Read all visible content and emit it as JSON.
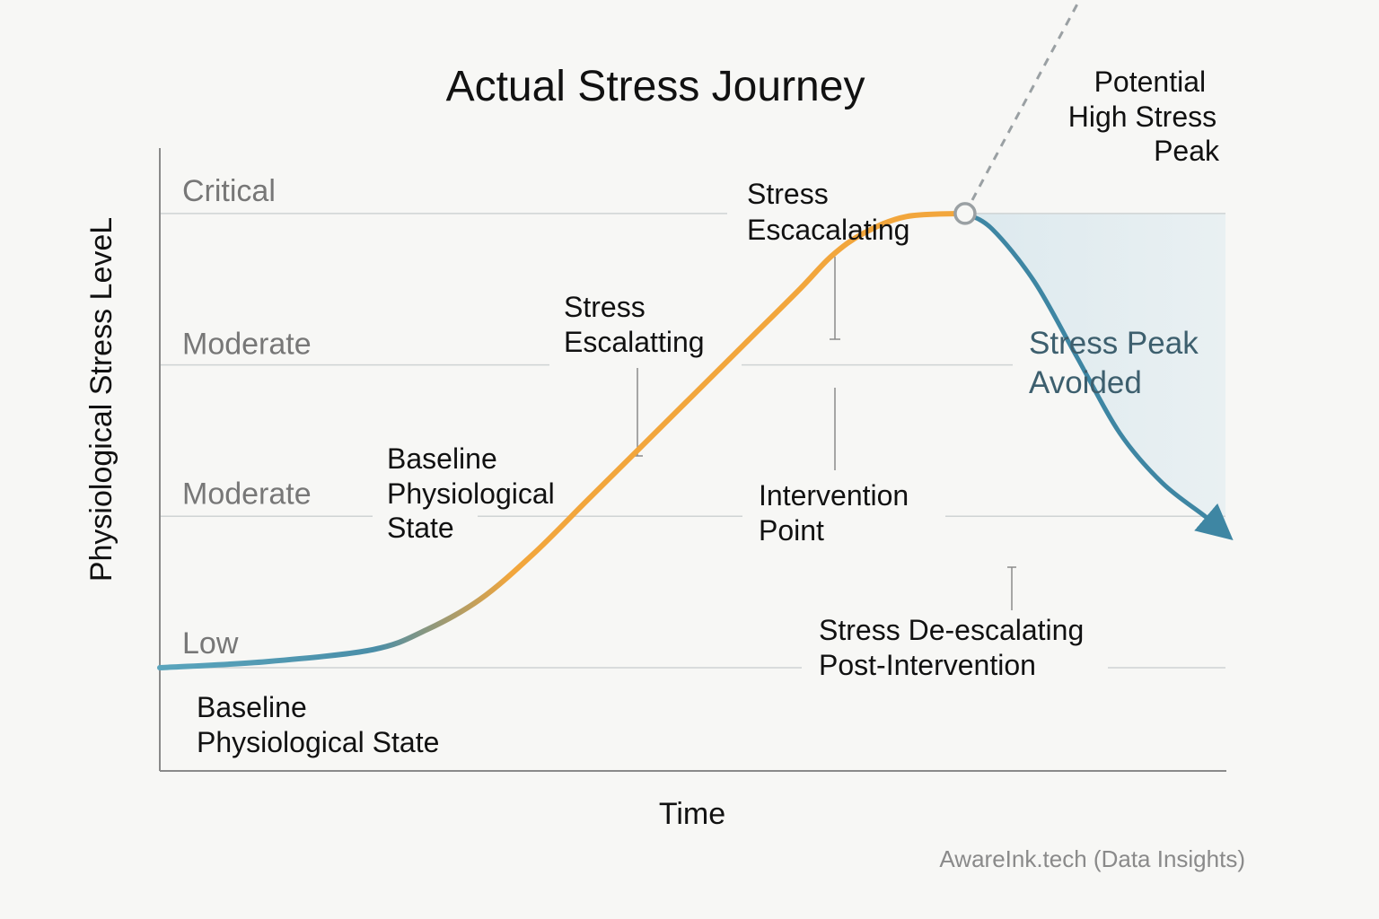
{
  "chart_data": {
    "type": "line",
    "title": "Actual Stress Journey",
    "xlabel": "Time",
    "ylabel": "Physiological Stress LeveL",
    "source": "AwareInk.tech (Data Insights)",
    "y_levels": [
      {
        "label": "Low",
        "value": 0
      },
      {
        "label": "Moderate",
        "value": 1
      },
      {
        "label": "Moderate",
        "value": 2
      },
      {
        "label": "Critical",
        "value": 3
      }
    ],
    "xlim": [
      0,
      100
    ],
    "ylim": [
      -0.75,
      3.6
    ],
    "series": [
      {
        "name": "",
        "color_start": "#5aa5bd",
        "color_end": "#f2a63c",
        "x": [
          0,
          10,
          20,
          25,
          30,
          35,
          40,
          45,
          50,
          55,
          60,
          63,
          66,
          70,
          75.5
        ],
        "y": [
          0,
          0.04,
          0.12,
          0.25,
          0.45,
          0.75,
          1.1,
          1.45,
          1.8,
          2.15,
          2.5,
          2.72,
          2.87,
          2.98,
          3.0
        ]
      },
      {
        "name": "",
        "color": "#3e86a3",
        "x": [
          75.5,
          78,
          82,
          86,
          90,
          94,
          98,
          100
        ],
        "y": [
          3.0,
          2.9,
          2.55,
          2.05,
          1.55,
          1.22,
          1.0,
          0.88
        ]
      },
      {
        "name": "Potential High Stress Peak",
        "style": "dashed",
        "color": "#9aa0a3",
        "x": [
          75.5,
          93
        ],
        "y": [
          3.0,
          5.3
        ]
      }
    ],
    "annotations": [
      {
        "lines": [
          "Potential",
          "High Stress",
          "Peak"
        ],
        "x": 93,
        "y": 5.3
      },
      {
        "lines": [
          "Stress",
          "Escacalating"
        ],
        "x": 63,
        "y": 4.0
      },
      {
        "lines": [
          "Stress",
          "Escalatting"
        ],
        "x": 47,
        "y": 2.9
      },
      {
        "lines": [
          "Stress Peak",
          "Avoided"
        ],
        "x": 84,
        "y": 3.0
      },
      {
        "lines": [
          "Baseline",
          "Physiological",
          "State"
        ],
        "x": 30,
        "y": 2.0
      },
      {
        "lines": [
          "Intervention",
          "Point"
        ],
        "x": 75.5,
        "y": 2.0
      },
      {
        "lines": [
          "Stress De-escalating",
          "Post-Intervention"
        ],
        "x": 83,
        "y": 0.8
      },
      {
        "lines": [
          "Baseline",
          "Physiological State"
        ],
        "x": 3,
        "y": 0
      }
    ],
    "intervention": {
      "x": 75.5,
      "y": 3.0
    },
    "grid": true,
    "legend": "none"
  },
  "colors": {
    "background": "#f7f7f5",
    "axis": "#8a8a8a",
    "grid": "#cfd3d4",
    "level_text": "#777777",
    "text": "#111111",
    "teal": "#3e86a3",
    "orange": "#f2a63c",
    "shade": "#cfe2ea"
  }
}
